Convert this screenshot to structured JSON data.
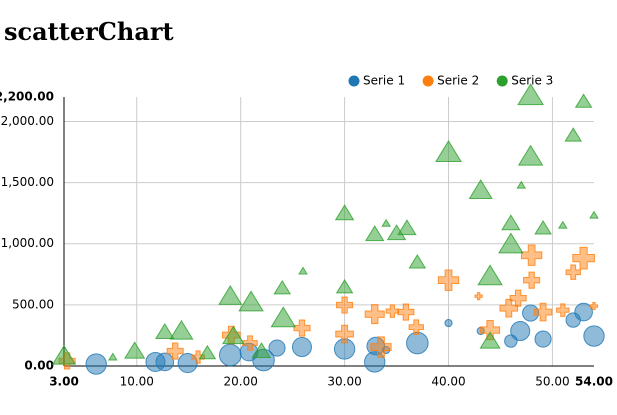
{
  "chart_data": {
    "type": "scatter",
    "title": "scatterChart",
    "xlim": [
      3,
      54
    ],
    "ylim": [
      0,
      2200
    ],
    "xticks": [
      {
        "value": 3,
        "label": "3.00"
      },
      {
        "value": 10,
        "label": "10.00"
      },
      {
        "value": 20,
        "label": "20.00"
      },
      {
        "value": 30,
        "label": "30.00"
      },
      {
        "value": 40,
        "label": "40.00"
      },
      {
        "value": 50,
        "label": "50.00"
      },
      {
        "value": 54,
        "label": "54.00"
      }
    ],
    "yticks": [
      {
        "value": 0,
        "label": "0.00"
      },
      {
        "value": 500,
        "label": "500.00"
      },
      {
        "value": 1000,
        "label": "1,000.00"
      },
      {
        "value": 1500,
        "label": "1,500.00"
      },
      {
        "value": 2000,
        "label": "2,000.00"
      },
      {
        "value": 2200,
        "label": "2,200.00"
      }
    ],
    "grid": true,
    "legend": "top-right",
    "series": [
      {
        "name": "Serie 1",
        "color": "#1f77b4",
        "shape": "circle",
        "x": [
          54,
          53,
          52,
          47.9,
          46.9,
          49.1,
          46,
          40,
          43.1,
          37,
          34,
          33,
          30,
          25.9,
          23.5,
          20.8,
          19,
          14.9,
          12.7,
          6.1,
          11.8,
          32.9,
          22.2
        ],
        "values": [
          245,
          441,
          376,
          433,
          286,
          220,
          204,
          351,
          286,
          188,
          131,
          163,
          139,
          155,
          147,
          114,
          90,
          24,
          33,
          16,
          33,
          33,
          49
        ],
        "sizes": [
          8,
          6,
          4,
          5,
          7,
          5,
          3,
          1,
          1,
          9,
          1,
          6,
          8,
          7,
          5,
          6,
          9,
          7,
          6,
          8,
          7,
          8,
          9
        ]
      },
      {
        "name": "Serie 2",
        "color": "#ff7f0e",
        "shape": "cross",
        "x": [
          48,
          53,
          40,
          48,
          52,
          46.7,
          45.8,
          30,
          32.9,
          35.9,
          34.6,
          25.9,
          30,
          19.1,
          20.9,
          13.7,
          51,
          49.1,
          54,
          42.9,
          44,
          36.9,
          33.5,
          15.9,
          3.3
        ],
        "values": [
          906,
          882,
          702,
          702,
          767,
          555,
          473,
          498,
          424,
          441,
          449,
          310,
          261,
          253,
          188,
          122,
          457,
          441,
          490,
          571,
          294,
          318,
          155,
          73,
          41
        ],
        "sizes": [
          8,
          9,
          8,
          5,
          4,
          5,
          6,
          5,
          7,
          5,
          3,
          5,
          6,
          6,
          4,
          5,
          3,
          6,
          1,
          1,
          7,
          4,
          8,
          3,
          5
        ]
      },
      {
        "name": "Serie 3",
        "color": "#2ca02c",
        "shape": "triangle-up",
        "x": [
          47.9,
          53,
          40,
          47.9,
          52,
          43.1,
          30,
          32.9,
          35,
          36,
          46,
          46,
          49.1,
          44,
          37,
          24,
          30,
          19,
          21,
          24.1,
          19.3,
          12.7,
          14.3,
          9.8,
          7.7,
          22,
          44,
          16.8,
          3,
          54,
          47,
          26,
          34,
          51
        ],
        "values": [
          2212,
          2163,
          1747,
          1714,
          1886,
          1437,
          1249,
          1078,
          1086,
          1127,
          1167,
          996,
          1127,
          735,
          849,
          637,
          645,
          571,
          522,
          392,
          245,
          278,
          286,
          122,
          73,
          122,
          204,
          106,
          82,
          1233,
          1478,
          776,
          1167,
          1151
        ],
        "sizes": [
          10,
          4,
          10,
          9,
          4,
          8,
          5,
          5,
          5,
          5,
          5,
          9,
          4,
          9,
          4,
          4,
          4,
          8,
          9,
          9,
          7,
          5,
          8,
          6,
          1,
          5,
          6,
          4,
          8,
          1,
          1,
          1,
          1,
          1
        ]
      }
    ]
  }
}
